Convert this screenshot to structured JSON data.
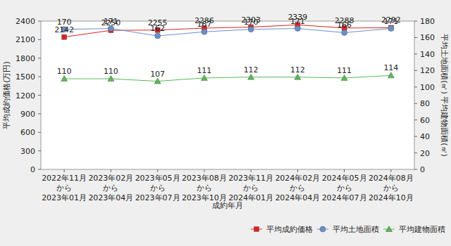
{
  "chart_data": {
    "type": "line",
    "categories": [
      "2022年11月\nから\n2023年01月",
      "2023年02月\nから\n2023年04月",
      "2023年05月\nから\n2023年07月",
      "2023年08月\nから\n2023年10月",
      "2023年11月\nから\n2024年01月",
      "2024年02月\nから\n2024年04月",
      "2024年05月\nから\n2024年07月",
      "2024年08月\nから\n2024年10月"
    ],
    "x_label": "成約年月",
    "y_label": "平均成約価格(万円)",
    "y2_label": "平均土地面積(㎡) 平均建物面積(㎡)",
    "ylim": [
      0,
      2400
    ],
    "yticks": [
      0,
      300,
      600,
      900,
      1200,
      1500,
      1800,
      2100,
      2400
    ],
    "y2lim": [
      0,
      180
    ],
    "y2ticks": [
      0,
      20,
      40,
      60,
      80,
      100,
      120,
      140,
      160,
      180
    ],
    "series": [
      {
        "name": "平均成約価格",
        "color": "#dd2222",
        "marker": "square",
        "values": [
          2142,
          2250,
          2255,
          2286,
          2303,
          2339,
          2288,
          2292
        ]
      },
      {
        "name": "平均土地面積",
        "color": "#6a8fca",
        "marker": "circle",
        "axis": "y2",
        "values": [
          170,
          171,
          162,
          167,
          170,
          171,
          166,
          171
        ]
      },
      {
        "name": "平均建物面積",
        "color": "#55bb55",
        "marker": "triangle",
        "axis": "y2",
        "values": [
          110,
          110,
          107,
          111,
          112,
          112,
          111,
          114
        ]
      }
    ],
    "data_labels": true,
    "grid": false,
    "legend": "bottom-right"
  }
}
